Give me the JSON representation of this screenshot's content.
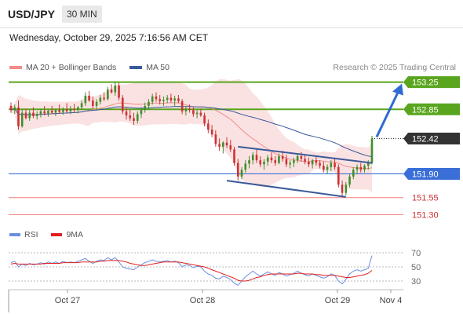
{
  "header": {
    "symbol": "USD/JPY",
    "timeframe": "30 MIN",
    "datetime": "Wednesday, October 29, 2025 7:16:56 AM CET",
    "copyright": "Research © 2025 Trading Central"
  },
  "colors": {
    "ma20": "#f28b8b",
    "bollinger_fill": "#fbe2e2",
    "ma50": "#3a5a99",
    "resistance": "#5aa51e",
    "support": "#3a6fd8",
    "support_red": "#f07f7f",
    "price_tag": "#333333",
    "candle_up": "#3f8f2c",
    "candle_down": "#cc3333",
    "rsi": "#6a8fe0",
    "rsi_ma": "#e02020"
  },
  "chart_data": {
    "type": "candlestick",
    "legend": [
      {
        "name": "MA 20 + Bollinger Bands",
        "color": "#f28b8b"
      },
      {
        "name": "MA 50",
        "color": "#3a5a99"
      }
    ],
    "legend_placement": "top-left",
    "price_levels": [
      {
        "value": 153.25,
        "label": "153.25",
        "kind": "resistance"
      },
      {
        "value": 152.85,
        "label": "152.85",
        "kind": "resistance"
      },
      {
        "value": 152.42,
        "label": "152.42",
        "kind": "last-price"
      },
      {
        "value": 151.9,
        "label": "151.90",
        "kind": "pivot"
      },
      {
        "value": 151.55,
        "label": "151.55",
        "kind": "support"
      },
      {
        "value": 151.3,
        "label": "151.30",
        "kind": "support"
      }
    ],
    "x_tick_labels": [
      "Oct 27",
      "Oct 28",
      "Oct 29",
      "Nov 4"
    ],
    "price_ylim": [
      151.2,
      153.35
    ],
    "candles": [
      [
        152.9,
        152.95,
        152.8,
        152.84
      ],
      [
        152.84,
        152.92,
        152.78,
        152.88
      ],
      [
        152.88,
        152.98,
        152.55,
        152.6
      ],
      [
        152.6,
        152.85,
        152.58,
        152.8
      ],
      [
        152.8,
        152.86,
        152.7,
        152.72
      ],
      [
        152.72,
        152.84,
        152.68,
        152.8
      ],
      [
        152.8,
        152.88,
        152.72,
        152.75
      ],
      [
        152.75,
        152.82,
        152.7,
        152.78
      ],
      [
        152.78,
        152.85,
        152.73,
        152.82
      ],
      [
        152.82,
        152.9,
        152.76,
        152.79
      ],
      [
        152.79,
        152.85,
        152.74,
        152.83
      ],
      [
        152.83,
        152.9,
        152.78,
        152.8
      ],
      [
        152.8,
        152.86,
        152.75,
        152.84
      ],
      [
        152.84,
        152.92,
        152.79,
        152.81
      ],
      [
        152.81,
        152.88,
        152.77,
        152.85
      ],
      [
        152.85,
        152.94,
        152.8,
        152.82
      ],
      [
        152.82,
        152.9,
        152.78,
        152.86
      ],
      [
        152.86,
        152.93,
        152.81,
        152.84
      ],
      [
        152.84,
        152.9,
        152.79,
        152.88
      ],
      [
        152.88,
        152.98,
        152.84,
        152.94
      ],
      [
        152.94,
        153.1,
        152.9,
        153.05
      ],
      [
        153.05,
        153.12,
        152.96,
        152.98
      ],
      [
        152.98,
        153.04,
        152.86,
        152.9
      ],
      [
        152.9,
        153.0,
        152.84,
        152.96
      ],
      [
        152.96,
        153.06,
        152.92,
        153.02
      ],
      [
        153.02,
        153.1,
        152.97,
        153.0
      ],
      [
        153.0,
        153.18,
        152.98,
        153.14
      ],
      [
        153.14,
        153.22,
        153.08,
        153.1
      ],
      [
        153.1,
        153.26,
        153.05,
        153.2
      ],
      [
        153.2,
        153.24,
        152.98,
        153.02
      ],
      [
        153.02,
        153.06,
        152.78,
        152.82
      ],
      [
        152.82,
        152.88,
        152.7,
        152.76
      ],
      [
        152.76,
        152.84,
        152.68,
        152.72
      ],
      [
        152.72,
        152.8,
        152.62,
        152.68
      ],
      [
        152.68,
        152.82,
        152.64,
        152.78
      ],
      [
        152.78,
        152.88,
        152.72,
        152.84
      ],
      [
        152.84,
        152.95,
        152.8,
        152.9
      ],
      [
        152.9,
        153.0,
        152.85,
        152.96
      ],
      [
        152.96,
        153.08,
        152.92,
        153.04
      ],
      [
        153.04,
        153.1,
        152.96,
        153.0
      ],
      [
        153.0,
        153.06,
        152.92,
        152.97
      ],
      [
        152.97,
        153.04,
        152.9,
        152.99
      ],
      [
        152.99,
        153.06,
        152.94,
        153.02
      ],
      [
        153.02,
        153.08,
        152.95,
        152.98
      ],
      [
        152.98,
        153.05,
        152.9,
        153.01
      ],
      [
        153.01,
        153.06,
        152.94,
        152.97
      ],
      [
        152.97,
        153.0,
        152.78,
        152.82
      ],
      [
        152.82,
        152.9,
        152.76,
        152.86
      ],
      [
        152.86,
        152.92,
        152.8,
        152.84
      ],
      [
        152.84,
        152.88,
        152.74,
        152.78
      ],
      [
        152.78,
        152.84,
        152.72,
        152.8
      ],
      [
        152.8,
        152.86,
        152.74,
        152.76
      ],
      [
        152.76,
        152.8,
        152.6,
        152.64
      ],
      [
        152.64,
        152.7,
        152.5,
        152.55
      ],
      [
        152.55,
        152.62,
        152.44,
        152.48
      ],
      [
        152.48,
        152.54,
        152.3,
        152.34
      ],
      [
        152.34,
        152.42,
        152.24,
        152.3
      ],
      [
        152.3,
        152.38,
        152.2,
        152.36
      ],
      [
        152.36,
        152.44,
        152.28,
        152.32
      ],
      [
        152.32,
        152.4,
        152.22,
        152.26
      ],
      [
        152.26,
        152.3,
        152.02,
        152.06
      ],
      [
        152.06,
        152.12,
        151.8,
        151.86
      ],
      [
        151.86,
        152.0,
        151.82,
        151.96
      ],
      [
        151.96,
        152.1,
        151.92,
        152.05
      ],
      [
        152.05,
        152.16,
        151.98,
        152.1
      ],
      [
        152.1,
        152.22,
        152.04,
        152.18
      ],
      [
        152.18,
        152.26,
        152.06,
        152.1
      ],
      [
        152.1,
        152.16,
        152.0,
        152.04
      ],
      [
        152.04,
        152.12,
        151.96,
        152.08
      ],
      [
        152.08,
        152.18,
        152.02,
        152.14
      ],
      [
        152.14,
        152.22,
        152.06,
        152.1
      ],
      [
        152.1,
        152.16,
        152.02,
        152.06
      ],
      [
        152.06,
        152.2,
        152.04,
        152.16
      ],
      [
        152.16,
        152.24,
        152.08,
        152.12
      ],
      [
        152.12,
        152.18,
        152.0,
        152.04
      ],
      [
        152.04,
        152.1,
        151.98,
        152.06
      ],
      [
        152.06,
        152.14,
        152.0,
        152.1
      ],
      [
        152.1,
        152.2,
        152.06,
        152.16
      ],
      [
        152.16,
        152.22,
        152.08,
        152.12
      ],
      [
        152.12,
        152.18,
        152.04,
        152.08
      ],
      [
        152.08,
        152.14,
        152.0,
        152.04
      ],
      [
        152.04,
        152.12,
        151.98,
        152.1
      ],
      [
        152.1,
        152.16,
        152.02,
        152.06
      ],
      [
        152.06,
        152.1,
        151.98,
        152.02
      ],
      [
        152.02,
        152.08,
        151.92,
        151.96
      ],
      [
        151.96,
        152.04,
        151.9,
        152.0
      ],
      [
        152.0,
        152.1,
        151.94,
        152.06
      ],
      [
        152.06,
        152.12,
        151.96,
        152.0
      ],
      [
        152.0,
        152.04,
        151.7,
        151.74
      ],
      [
        151.74,
        151.8,
        151.56,
        151.62
      ],
      [
        151.62,
        151.78,
        151.58,
        151.74
      ],
      [
        151.74,
        151.9,
        151.7,
        151.86
      ],
      [
        151.86,
        152.0,
        151.82,
        151.96
      ],
      [
        151.96,
        152.04,
        151.9,
        152.0
      ],
      [
        152.0,
        152.06,
        151.92,
        151.96
      ],
      [
        151.96,
        152.04,
        151.92,
        152.02
      ],
      [
        152.02,
        152.1,
        151.96,
        152.06
      ],
      [
        152.06,
        152.46,
        152.04,
        152.42
      ]
    ],
    "trendlines": [
      {
        "from_bar": 58,
        "from_price": 151.8,
        "to_bar": 90,
        "to_price": 151.56
      },
      {
        "from_bar": 61,
        "from_price": 152.3,
        "to_bar": 97,
        "to_price": 152.06
      }
    ],
    "forecast_arrow": {
      "from_price": 152.42,
      "to_price": 153.25
    },
    "rsi_panel": {
      "legend": [
        {
          "name": "RSI",
          "color": "#6a8fe0"
        },
        {
          "name": "9MA",
          "color": "#e02020"
        }
      ],
      "ylim": [
        20,
        80
      ],
      "tick_labels": [
        "70",
        "50",
        "30"
      ],
      "tick_values": [
        70,
        50,
        30
      ],
      "rsi": [
        56,
        58,
        50,
        54,
        52,
        55,
        53,
        54,
        56,
        54,
        57,
        55,
        57,
        55,
        58,
        56,
        57,
        56,
        58,
        60,
        62,
        58,
        55,
        58,
        60,
        59,
        63,
        60,
        63,
        57,
        50,
        48,
        47,
        46,
        50,
        53,
        56,
        58,
        60,
        58,
        57,
        58,
        59,
        57,
        58,
        56,
        50,
        53,
        52,
        49,
        51,
        50,
        44,
        40,
        38,
        34,
        33,
        37,
        35,
        32,
        27,
        24,
        30,
        36,
        40,
        44,
        40,
        37,
        40,
        43,
        40,
        38,
        42,
        40,
        37,
        39,
        41,
        44,
        41,
        39,
        37,
        40,
        38,
        36,
        34,
        36,
        40,
        38,
        30,
        26,
        32,
        40,
        44,
        46,
        44,
        46,
        48,
        66
      ],
      "rsi_ma": [
        54,
        55,
        54,
        54,
        54,
        54,
        54,
        54,
        54,
        55,
        55,
        55,
        55,
        55,
        56,
        56,
        56,
        56,
        56,
        57,
        57,
        57,
        57,
        57,
        58,
        58,
        59,
        59,
        59,
        59,
        58,
        57,
        55,
        54,
        53,
        52,
        52,
        53,
        54,
        55,
        56,
        57,
        57,
        57,
        57,
        57,
        56,
        55,
        54,
        53,
        52,
        51,
        50,
        48,
        46,
        44,
        42,
        40,
        38,
        36,
        34,
        31,
        30,
        30,
        31,
        33,
        35,
        36,
        38,
        39,
        40,
        40,
        40,
        40,
        40,
        40,
        40,
        41,
        41,
        40,
        40,
        40,
        39,
        39,
        38,
        38,
        38,
        38,
        37,
        36,
        35,
        35,
        36,
        37,
        38,
        39,
        41,
        45
      ]
    }
  }
}
